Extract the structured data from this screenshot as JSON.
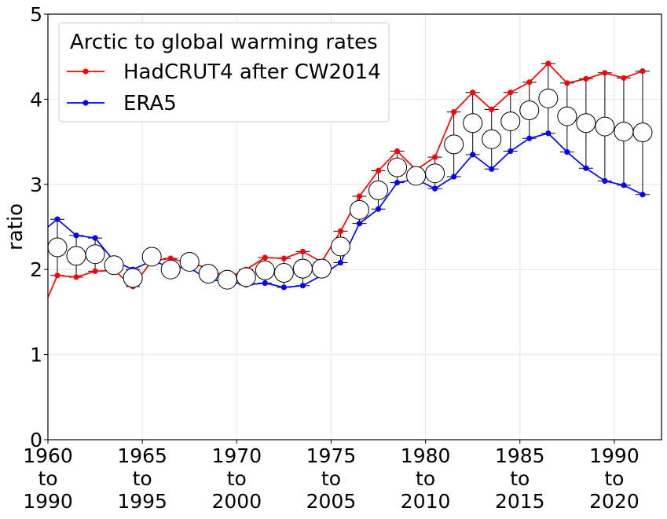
{
  "chart_data": {
    "type": "line",
    "xlabel": "",
    "ylabel": "ratio",
    "ylim": [
      0,
      5
    ],
    "xlim": [
      1960,
      1992.5
    ],
    "yticks": [
      0,
      1,
      2,
      3,
      4,
      5
    ],
    "xticks": [
      {
        "value": 1960,
        "lines": [
          "1960",
          "to",
          "1990"
        ]
      },
      {
        "value": 1965,
        "lines": [
          "1965",
          "to",
          "1995"
        ]
      },
      {
        "value": 1970,
        "lines": [
          "1970",
          "to",
          "2000"
        ]
      },
      {
        "value": 1975,
        "lines": [
          "1975",
          "to",
          "2005"
        ]
      },
      {
        "value": 1980,
        "lines": [
          "1980",
          "to",
          "2010"
        ]
      },
      {
        "value": 1985,
        "lines": [
          "1985",
          "to",
          "2015"
        ]
      },
      {
        "value": 1990,
        "lines": [
          "1990",
          "to",
          "2020"
        ]
      }
    ],
    "grid": true,
    "legend": {
      "title": "Arctic to global warming rates",
      "position": "top-left"
    },
    "series": [
      {
        "name": "HadCRUT4 after CW2014",
        "color": "#ff0000",
        "line_start": {
          "x": 1960,
          "y": 1.67
        },
        "x": [
          1960.5,
          1961.5,
          1962.5,
          1963.5,
          1964.5,
          1965.5,
          1966.5,
          1967.5,
          1968.5,
          1969.5,
          1970.5,
          1971.5,
          1972.5,
          1973.5,
          1974.5,
          1975.5,
          1976.5,
          1977.5,
          1978.5,
          1979.5,
          1980.5,
          1981.5,
          1982.5,
          1983.5,
          1984.5,
          1985.5,
          1986.5,
          1987.5,
          1988.5,
          1989.5,
          1990.5,
          1991.5
        ],
        "y": [
          1.93,
          1.91,
          1.98,
          1.99,
          1.8,
          2.1,
          2.13,
          2.07,
          2.02,
          1.9,
          2.0,
          2.14,
          2.13,
          2.21,
          2.09,
          2.45,
          2.86,
          3.16,
          3.39,
          3.17,
          3.32,
          3.85,
          4.08,
          3.88,
          4.08,
          4.2,
          4.42,
          4.19,
          4.24,
          4.31,
          4.25,
          4.33
        ]
      },
      {
        "name": "ERA5",
        "color": "#0000ff",
        "line_start": {
          "x": 1960,
          "y": 2.5
        },
        "x": [
          1960.5,
          1961.5,
          1962.5,
          1963.5,
          1964.5,
          1965.5,
          1966.5,
          1967.5,
          1968.5,
          1969.5,
          1970.5,
          1971.5,
          1972.5,
          1973.5,
          1974.5,
          1975.5,
          1976.5,
          1977.5,
          1978.5,
          1979.5,
          1980.5,
          1981.5,
          1982.5,
          1983.5,
          1984.5,
          1985.5,
          1986.5,
          1987.5,
          1988.5,
          1989.5,
          1990.5,
          1991.5
        ],
        "y": [
          2.59,
          2.4,
          2.37,
          2.1,
          2.0,
          2.1,
          2.03,
          2.02,
          1.88,
          1.86,
          1.82,
          1.84,
          1.79,
          1.81,
          1.93,
          2.08,
          2.54,
          2.71,
          3.02,
          3.06,
          2.95,
          3.09,
          3.35,
          3.18,
          3.39,
          3.54,
          3.6,
          3.38,
          3.19,
          3.04,
          2.99,
          2.88
        ]
      }
    ],
    "mean_markers": {
      "x": [
        1960.5,
        1961.5,
        1962.5,
        1963.5,
        1964.5,
        1965.5,
        1966.5,
        1967.5,
        1968.5,
        1969.5,
        1970.5,
        1971.5,
        1972.5,
        1973.5,
        1974.5,
        1975.5,
        1976.5,
        1977.5,
        1978.5,
        1979.5,
        1980.5,
        1981.5,
        1982.5,
        1983.5,
        1984.5,
        1985.5,
        1986.5,
        1987.5,
        1988.5,
        1989.5,
        1990.5,
        1991.5
      ],
      "y": [
        2.26,
        2.16,
        2.18,
        2.05,
        1.9,
        2.15,
        2.0,
        2.09,
        1.95,
        1.88,
        1.91,
        1.99,
        1.96,
        2.01,
        2.01,
        2.27,
        2.7,
        2.93,
        3.2,
        3.1,
        3.13,
        3.47,
        3.72,
        3.53,
        3.74,
        3.87,
        4.01,
        3.8,
        3.72,
        3.68,
        3.62,
        3.61
      ]
    }
  }
}
